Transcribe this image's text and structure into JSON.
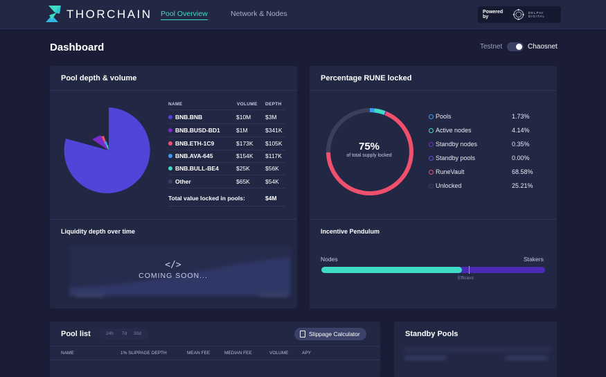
{
  "header": {
    "brand": "THORCHAIN",
    "nav": [
      "Pool Overview",
      "Network & Nodes"
    ],
    "powered_by": "Powered by",
    "partner": "DELPHI DIGITAL"
  },
  "page": {
    "title": "Dashboard",
    "net_left": "Testnet",
    "net_right": "Chaosnet",
    "net_selected": "Chaosnet"
  },
  "pool_depth": {
    "title": "Pool depth & volume",
    "columns": [
      "NAME",
      "VOLUME",
      "DEPTH"
    ],
    "rows": [
      {
        "name": "BNB.BNB",
        "volume": "$10M",
        "depth": "$3M",
        "color": "#4f46d9"
      },
      {
        "name": "BNB.BUSD-BD1",
        "volume": "$1M",
        "depth": "$341K",
        "color": "#7a2bc8"
      },
      {
        "name": "BNB.ETH-1C9",
        "volume": "$173K",
        "depth": "$105K",
        "color": "#f0506e"
      },
      {
        "name": "BNB.AVA-645",
        "volume": "$154K",
        "depth": "$117K",
        "color": "#3d9aef"
      },
      {
        "name": "BNB.BULL-BE4",
        "volume": "$25K",
        "depth": "$56K",
        "color": "#3fdcc5"
      },
      {
        "name": "Other",
        "volume": "$65K",
        "depth": "$54K",
        "color": "#3a3f5c"
      }
    ],
    "total_label": "Total value locked in pools:",
    "total_value": "$4M"
  },
  "rune_locked": {
    "title": "Percentage RUNE locked",
    "center_value": "75%",
    "center_label": "of total supply locked",
    "legend": [
      {
        "label": "Pools",
        "pct": "1.73%",
        "color": "#3d9aef"
      },
      {
        "label": "Active nodes",
        "pct": "4.14%",
        "color": "#3fdcc5"
      },
      {
        "label": "Standby nodes",
        "pct": "0.35%",
        "color": "#7a2bc8"
      },
      {
        "label": "Standby pools",
        "pct": "0.00%",
        "color": "#5a4ee6"
      },
      {
        "label": "RuneVault",
        "pct": "68.58%",
        "color": "#f0506e"
      },
      {
        "label": "Unlocked",
        "pct": "25.21%",
        "color": "#3a3f5c"
      }
    ]
  },
  "liquidity": {
    "title": "Liquidity depth over time",
    "coming_soon": "COMING SOON..."
  },
  "pendulum": {
    "title": "Incentive Pendulum",
    "left": "Nodes",
    "right": "Stakers",
    "marker": "Efficient",
    "level": 0.63
  },
  "pool_list": {
    "title": "Pool list",
    "ranges": [
      "24h",
      "7d",
      "30d"
    ],
    "calculator": "Slippage Calculator",
    "columns": [
      "NAME",
      "1% SLIPPAGE DEPTH",
      "MEAN FEE",
      "MEDIAN FEE",
      "VOLUME",
      "APY"
    ]
  },
  "standby": {
    "title": "Standby Pools"
  }
}
